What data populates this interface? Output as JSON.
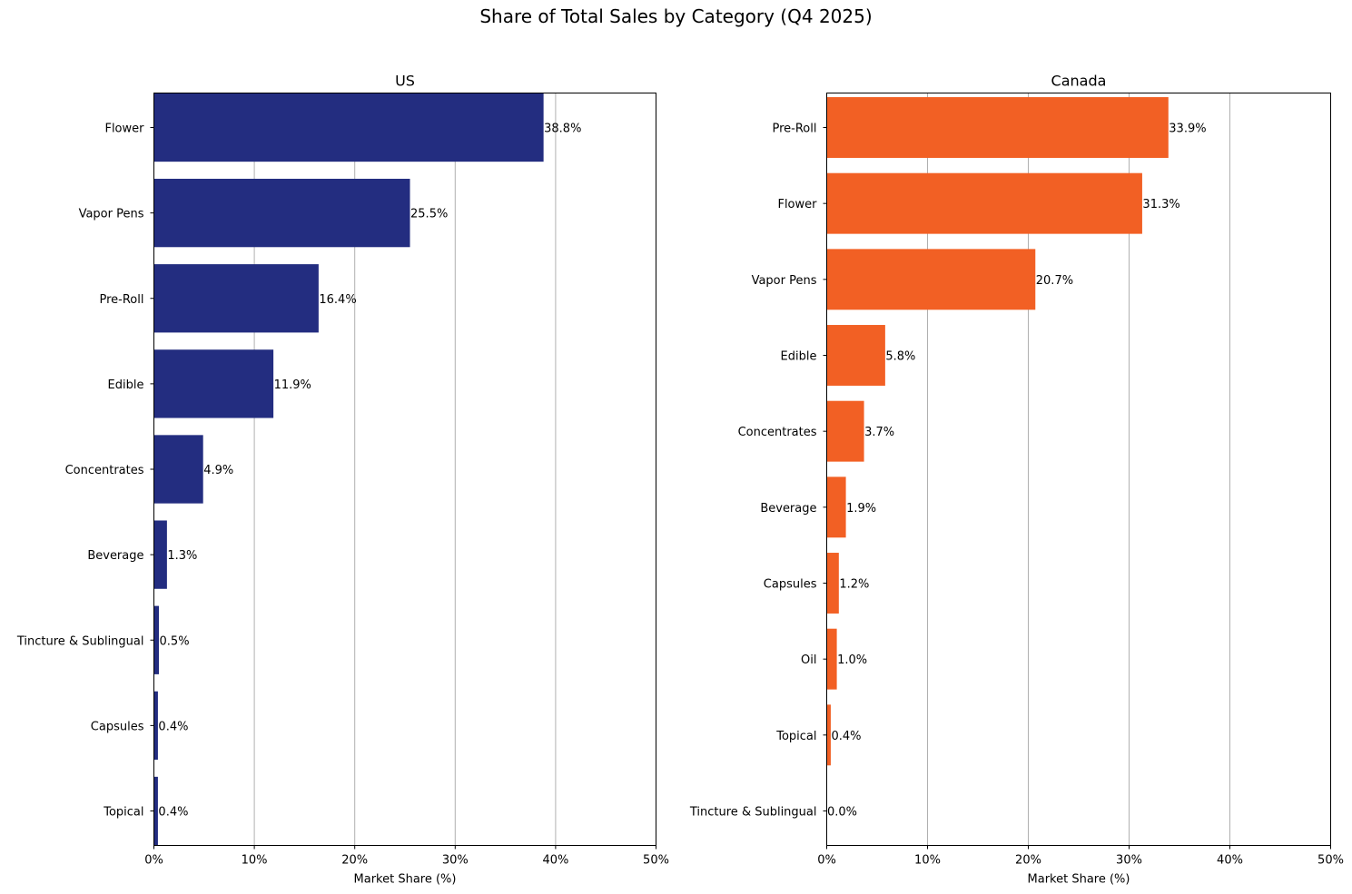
{
  "suptitle": "Share of Total Sales by Category (Q4 2025)",
  "colors": {
    "us": "#232d80",
    "canada": "#f26024",
    "grid": "#b0b0b0",
    "axis": "#000000"
  },
  "chart_data": [
    {
      "type": "bar",
      "orientation": "horizontal",
      "title": "US",
      "xlabel": "Market Share (%)",
      "ylabel": "",
      "xlim": [
        0,
        50
      ],
      "xticks": [
        0,
        10,
        20,
        30,
        40,
        50
      ],
      "xtick_labels": [
        "0%",
        "10%",
        "20%",
        "30%",
        "40%",
        "50%"
      ],
      "grid": "x",
      "color": "#232d80",
      "categories": [
        "Flower",
        "Vapor Pens",
        "Pre-Roll",
        "Edible",
        "Concentrates",
        "Beverage",
        "Tincture & Sublingual",
        "Capsules",
        "Topical"
      ],
      "values": [
        38.8,
        25.5,
        16.4,
        11.9,
        4.9,
        1.3,
        0.5,
        0.4,
        0.4
      ],
      "value_labels": [
        "38.8%",
        "25.5%",
        "16.4%",
        "11.9%",
        "4.9%",
        "1.3%",
        "0.5%",
        "0.4%",
        "0.4%"
      ]
    },
    {
      "type": "bar",
      "orientation": "horizontal",
      "title": "Canada",
      "xlabel": "Market Share (%)",
      "ylabel": "",
      "xlim": [
        0,
        50
      ],
      "xticks": [
        0,
        10,
        20,
        30,
        40,
        50
      ],
      "xtick_labels": [
        "0%",
        "10%",
        "20%",
        "30%",
        "40%",
        "50%"
      ],
      "grid": "x",
      "color": "#f26024",
      "categories": [
        "Pre-Roll",
        "Flower",
        "Vapor Pens",
        "Edible",
        "Concentrates",
        "Beverage",
        "Capsules",
        "Oil",
        "Topical",
        "Tincture & Sublingual"
      ],
      "values": [
        33.9,
        31.3,
        20.7,
        5.8,
        3.7,
        1.9,
        1.2,
        1.0,
        0.4,
        0.0
      ],
      "value_labels": [
        "33.9%",
        "31.3%",
        "20.7%",
        "5.8%",
        "3.7%",
        "1.9%",
        "1.2%",
        "1.0%",
        "0.4%",
        "0.0%"
      ]
    }
  ]
}
